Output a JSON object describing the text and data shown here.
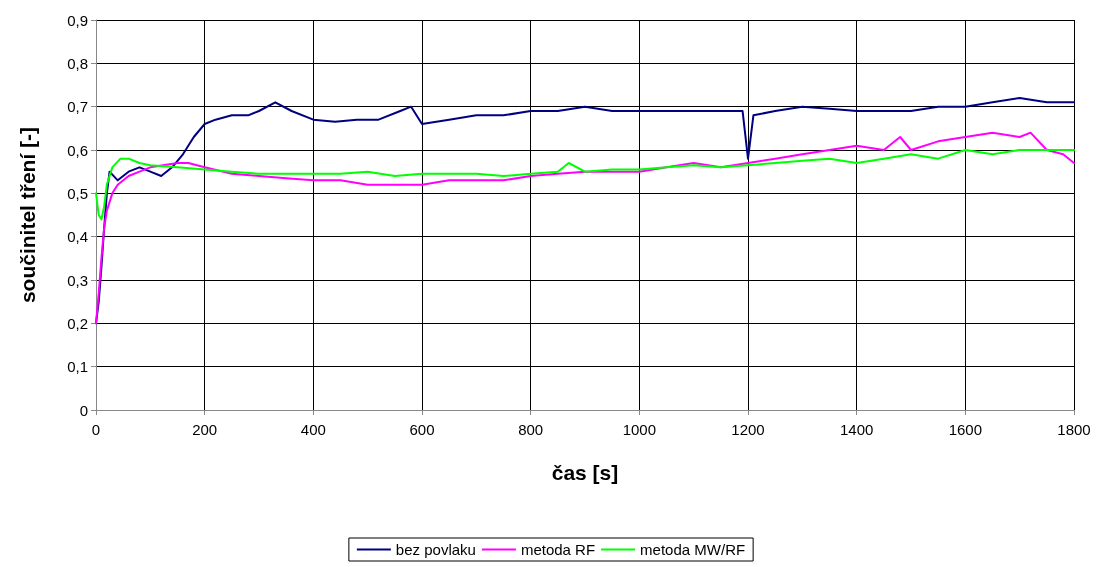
{
  "chart_data": {
    "type": "line",
    "xlabel": "čas [s]",
    "ylabel": "součinitel tření [-]",
    "xlim": [
      0,
      1800
    ],
    "xticks": [
      0,
      200,
      400,
      600,
      800,
      1000,
      1200,
      1400,
      1600,
      1800
    ],
    "ylim": [
      0,
      0.9
    ],
    "yticks": [
      {
        "value": 0,
        "label": "0"
      },
      {
        "value": 0.1,
        "label": "0,1"
      },
      {
        "value": 0.2,
        "label": "0,2"
      },
      {
        "value": 0.3,
        "label": "0,3"
      },
      {
        "value": 0.4,
        "label": "0,4"
      },
      {
        "value": 0.5,
        "label": "0,5"
      },
      {
        "value": 0.6,
        "label": "0,6"
      },
      {
        "value": 0.7,
        "label": "0,7"
      },
      {
        "value": 0.8,
        "label": "0,8"
      },
      {
        "value": 0.9,
        "label": "0,9"
      }
    ],
    "grid": true,
    "legend": "bottom",
    "marker": "none",
    "line_style": "solid",
    "series": [
      {
        "name": "bez povlaku",
        "color": "#000080",
        "x": [
          0,
          5,
          10,
          15,
          20,
          25,
          40,
          60,
          80,
          100,
          120,
          140,
          160,
          180,
          200,
          220,
          250,
          280,
          300,
          330,
          360,
          400,
          440,
          480,
          520,
          560,
          580,
          600,
          650,
          700,
          750,
          800,
          850,
          900,
          950,
          1000,
          1050,
          1100,
          1150,
          1190,
          1200,
          1210,
          1250,
          1300,
          1350,
          1400,
          1450,
          1500,
          1550,
          1600,
          1650,
          1700,
          1750,
          1800
        ],
        "values": [
          0.2,
          0.25,
          0.33,
          0.42,
          0.5,
          0.55,
          0.53,
          0.55,
          0.56,
          0.55,
          0.54,
          0.56,
          0.59,
          0.63,
          0.66,
          0.67,
          0.68,
          0.68,
          0.69,
          0.71,
          0.69,
          0.67,
          0.665,
          0.67,
          0.67,
          0.69,
          0.7,
          0.66,
          0.67,
          0.68,
          0.68,
          0.69,
          0.69,
          0.7,
          0.69,
          0.69,
          0.69,
          0.69,
          0.69,
          0.69,
          0.58,
          0.68,
          0.69,
          0.7,
          0.695,
          0.69,
          0.69,
          0.69,
          0.7,
          0.7,
          0.71,
          0.72,
          0.71,
          0.71
        ]
      },
      {
        "name": "metoda RF",
        "color": "#ff00ff",
        "x": [
          0,
          5,
          10,
          15,
          20,
          30,
          40,
          60,
          80,
          100,
          150,
          170,
          200,
          250,
          300,
          350,
          400,
          450,
          500,
          550,
          600,
          650,
          700,
          750,
          800,
          850,
          900,
          950,
          1000,
          1050,
          1100,
          1150,
          1200,
          1250,
          1300,
          1350,
          1400,
          1450,
          1480,
          1500,
          1550,
          1600,
          1650,
          1700,
          1720,
          1750,
          1780,
          1800
        ],
        "values": [
          0.2,
          0.27,
          0.35,
          0.42,
          0.46,
          0.5,
          0.52,
          0.54,
          0.55,
          0.56,
          0.57,
          0.57,
          0.56,
          0.545,
          0.54,
          0.535,
          0.53,
          0.53,
          0.52,
          0.52,
          0.52,
          0.53,
          0.53,
          0.53,
          0.54,
          0.545,
          0.55,
          0.55,
          0.55,
          0.56,
          0.57,
          0.56,
          0.57,
          0.58,
          0.59,
          0.6,
          0.61,
          0.6,
          0.63,
          0.6,
          0.62,
          0.63,
          0.64,
          0.63,
          0.64,
          0.6,
          0.59,
          0.57
        ]
      },
      {
        "name": "metoda MW/RF",
        "color": "#00ff00",
        "x": [
          0,
          5,
          10,
          15,
          20,
          30,
          45,
          60,
          80,
          100,
          150,
          200,
          250,
          300,
          350,
          400,
          450,
          500,
          550,
          600,
          650,
          700,
          750,
          800,
          850,
          870,
          900,
          950,
          1000,
          1050,
          1100,
          1150,
          1200,
          1250,
          1300,
          1350,
          1400,
          1450,
          1500,
          1550,
          1600,
          1650,
          1700,
          1750,
          1800
        ],
        "values": [
          0.5,
          0.45,
          0.44,
          0.47,
          0.52,
          0.56,
          0.58,
          0.58,
          0.57,
          0.565,
          0.56,
          0.555,
          0.55,
          0.545,
          0.545,
          0.545,
          0.545,
          0.55,
          0.54,
          0.545,
          0.545,
          0.545,
          0.54,
          0.545,
          0.55,
          0.57,
          0.55,
          0.555,
          0.555,
          0.56,
          0.565,
          0.56,
          0.565,
          0.57,
          0.575,
          0.58,
          0.57,
          0.58,
          0.59,
          0.58,
          0.6,
          0.59,
          0.6,
          0.6,
          0.6
        ]
      }
    ]
  }
}
